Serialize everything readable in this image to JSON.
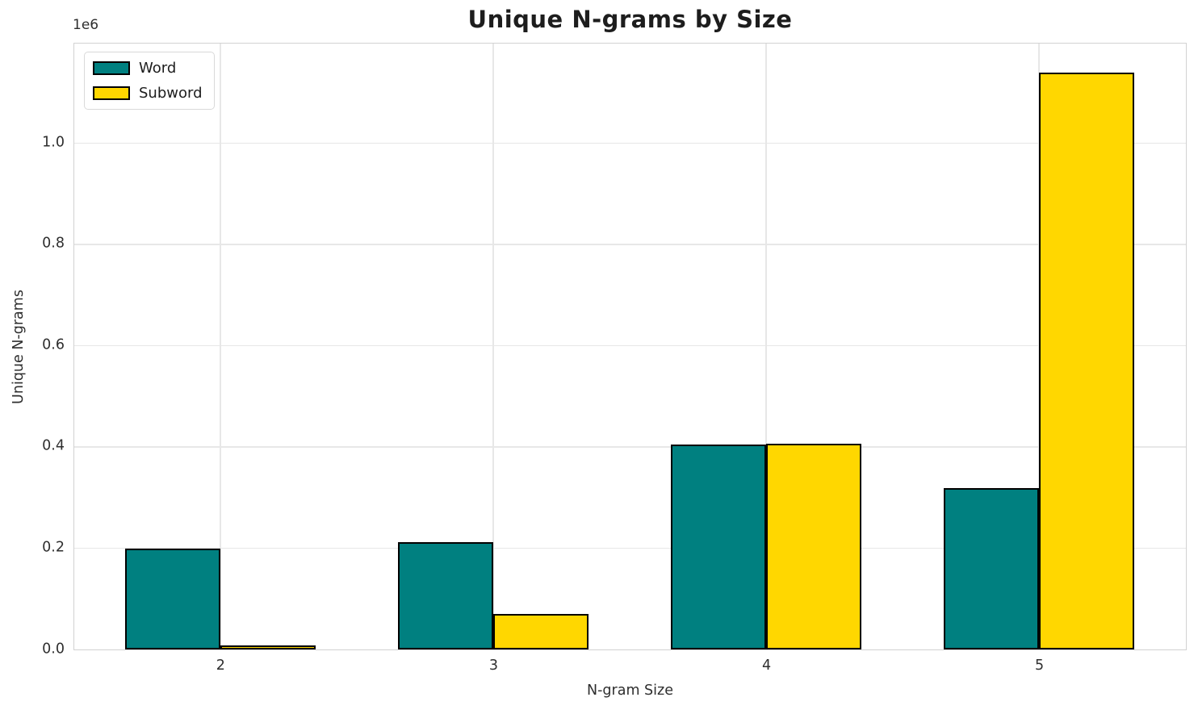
{
  "title": "Unique N-grams by Size",
  "axes": {
    "x_label": "N-gram Size",
    "y_label": "Unique N-grams",
    "offset_text": "1e6",
    "x_tick_labels": [
      "2",
      "3",
      "4",
      "5"
    ],
    "y_tick_labels": [
      "0.0",
      "0.2",
      "0.4",
      "0.6",
      "0.8",
      "1.0"
    ],
    "y_tick_values": [
      0,
      200000,
      400000,
      600000,
      800000,
      1000000
    ]
  },
  "chart_data": {
    "type": "bar",
    "title": "Unique N-grams by Size",
    "xlabel": "N-gram Size",
    "ylabel": "Unique N-grams",
    "categories": [
      2,
      3,
      4,
      5
    ],
    "series": [
      {
        "name": "Word",
        "color": "#008080",
        "values": [
          199000,
          212000,
          404000,
          318000
        ]
      },
      {
        "name": "Subword",
        "color": "#FFD700",
        "values": [
          8500,
          70000,
          406000,
          1139000
        ]
      }
    ],
    "ylim": [
      0,
      1195000
    ],
    "y_multiplier": 1000000,
    "grid": true,
    "legend_position": "upper left",
    "bar_width_fraction": 0.35,
    "bar_edge_color": "#000000"
  },
  "colors": {
    "background": "#ffffff",
    "grid": "#e7e7e7",
    "spine": "#d2d2d2",
    "tick_text": "#2e2e2e",
    "title_text": "#1d1d1d"
  }
}
